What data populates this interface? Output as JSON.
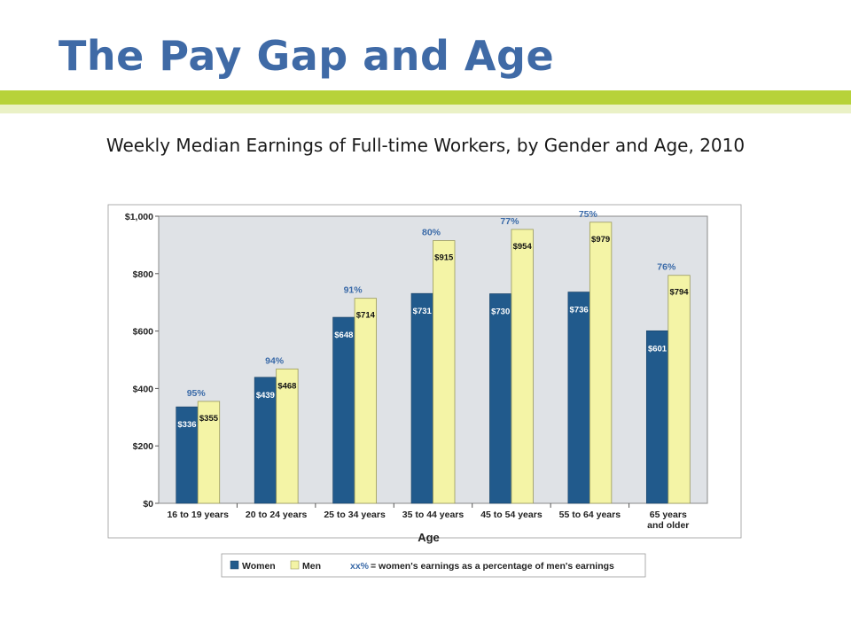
{
  "slide": {
    "title": "The Pay Gap and Age",
    "subtitle": "Weekly Median Earnings of Full-time Workers, by Gender and Age, 2010"
  },
  "colors": {
    "women": "#215a8c",
    "men": "#f4f4a6",
    "pct_label": "#3a6aa8",
    "plot_bg": "#dfe2e6"
  },
  "chart_data": {
    "type": "bar",
    "categories": [
      [
        "16 to 19 years"
      ],
      [
        "20 to 24 years"
      ],
      [
        "25 to 34 years"
      ],
      [
        "35 to 44 years"
      ],
      [
        "45 to 54 years"
      ],
      [
        "55 to 64 years"
      ],
      [
        "65 years",
        "and older"
      ]
    ],
    "series": [
      {
        "name": "Women",
        "values": [
          336,
          439,
          648,
          731,
          730,
          736,
          601
        ],
        "labels": [
          "$336",
          "$439",
          "$648",
          "$731",
          "$730",
          "$736",
          "$601"
        ]
      },
      {
        "name": "Men",
        "values": [
          355,
          468,
          714,
          915,
          954,
          979,
          794
        ],
        "labels": [
          "$355",
          "$468",
          "$714",
          "$915",
          "$954",
          "$979",
          "$794"
        ]
      }
    ],
    "ratio_labels": [
      "95%",
      "94%",
      "91%",
      "80%",
      "77%",
      "75%",
      "76%"
    ],
    "xlabel": "Age",
    "ylabel": "",
    "ylim": [
      0,
      1000
    ],
    "yticks": [
      {
        "value": 0,
        "label": "$0"
      },
      {
        "value": 200,
        "label": "$200"
      },
      {
        "value": 400,
        "label": "$400"
      },
      {
        "value": 600,
        "label": "$600"
      },
      {
        "value": 800,
        "label": "$800"
      },
      {
        "value": 1000,
        "label": "$1,000"
      }
    ],
    "grid": false,
    "legend": {
      "placement": "bottom",
      "women_label": "Women",
      "men_label": "Men",
      "note_key": "xx%",
      "note_text": "= women's earnings as a percentage of men's earnings"
    }
  }
}
